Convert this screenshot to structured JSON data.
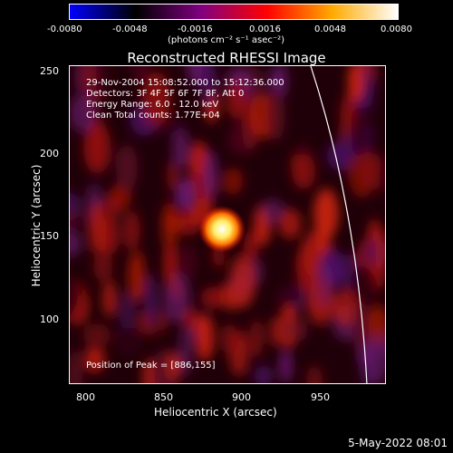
{
  "colorbar": {
    "ticks": [
      "-0.0080",
      "-0.0048",
      "-0.0016",
      "0.0016",
      "0.0048",
      "0.0080"
    ],
    "unit": "(photons cm⁻² s⁻¹ asec⁻²)",
    "colors": [
      "#0000ff",
      "#000000",
      "#800080",
      "#ff0000",
      "#ffaa00",
      "#ffffff"
    ]
  },
  "title": "Reconstructed RHESSI Image",
  "info": {
    "line1": "29-Nov-2004 15:08:52.000 to 15:12:36.000",
    "line2": "Detectors: 3F 4F 5F 6F 7F 8F, Att 0",
    "line3": "Energy Range: 6.0 - 12.0 keV",
    "line4": "Clean     Total counts: 1.77E+04",
    "peak": "Position of Peak = [886,155]"
  },
  "axes": {
    "x_ticks": [
      "800",
      "850",
      "900",
      "950"
    ],
    "y_ticks": [
      "250",
      "200",
      "150",
      "100"
    ],
    "x_title": "Heliocentric X (arcsec)",
    "y_title": "Heliocentric Y (arcsec)"
  },
  "timestamp": "5-May-2022 08:01"
}
